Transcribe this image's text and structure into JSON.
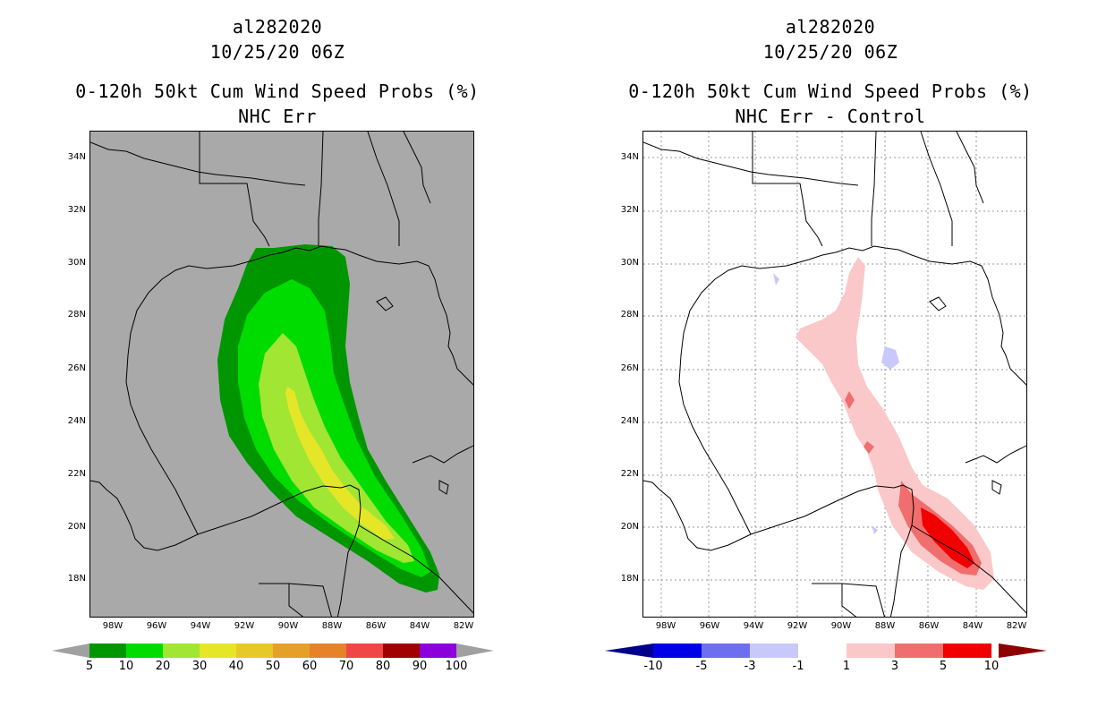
{
  "left": {
    "title_line1": "al282020",
    "title_line2": "10/25/20 06Z",
    "title_line3": "0-120h 50kt Cum Wind Speed Probs (%)",
    "title_line4": "NHC Err",
    "background": "#a9a9a9",
    "colorbar": {
      "colors": [
        "#009600",
        "#00dc00",
        "#a0e632",
        "#e6e628",
        "#e6c828",
        "#e6a028",
        "#e68228",
        "#f04646",
        "#a00000",
        "#8c00dc"
      ],
      "end_color": "#a0a0a0",
      "labels": [
        "5",
        "10",
        "20",
        "30",
        "40",
        "50",
        "60",
        "70",
        "80",
        "90",
        "100"
      ]
    }
  },
  "right": {
    "title_line1": "al282020",
    "title_line2": "10/25/20 06Z",
    "title_line3": "0-120h 50kt Cum Wind Speed Probs (%)",
    "title_line4": "NHC Err - Control",
    "background": "#ffffff",
    "colorbar": {
      "colors": [
        "#0000e6",
        "#6e6ef0",
        "#c8c8fa",
        "#ffffff",
        "#fac8c8",
        "#f06e6e",
        "#f00000"
      ],
      "low_end_color": "#00008c",
      "high_end_color": "#8c0000",
      "labels": [
        "-10",
        "-5",
        "-3",
        "-1",
        "1",
        "3",
        "5",
        "10"
      ]
    }
  },
  "axes": {
    "lat_labels": [
      "34N",
      "32N",
      "30N",
      "28N",
      "26N",
      "24N",
      "22N",
      "20N",
      "18N"
    ],
    "lon_labels": [
      "98W",
      "96W",
      "94W",
      "92W",
      "90W",
      "88W",
      "86W",
      "84W",
      "82W"
    ]
  }
}
